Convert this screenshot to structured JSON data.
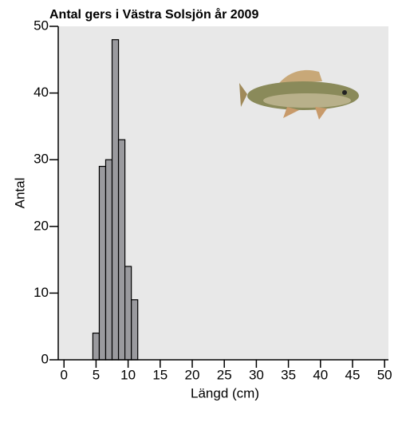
{
  "chart_data": {
    "type": "histogram",
    "title": "Antal gers i Västra Solsjön år 2009",
    "x_label": "Längd (cm)",
    "y_label": "Antal",
    "bins": [
      4.5,
      5.5,
      6.5,
      7.5,
      8.5,
      9.5,
      10.5,
      11.5
    ],
    "values": [
      4,
      29,
      30,
      48,
      33,
      14,
      9
    ],
    "color": "#9a9a9e",
    "xlim": [
      -0.9,
      50.6
    ],
    "ylim": [
      0,
      50
    ],
    "xticks": [
      0,
      5,
      10,
      15,
      20,
      25,
      30,
      35,
      40,
      45,
      50
    ],
    "yticks": [
      0,
      10,
      20,
      30,
      40,
      50
    ]
  }
}
